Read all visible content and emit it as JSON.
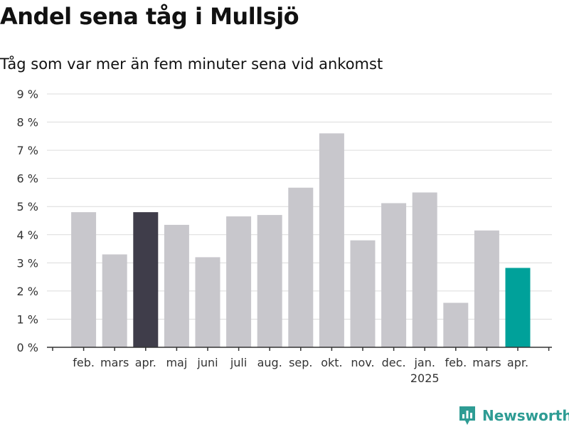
{
  "header": {
    "title": "Andel sena tåg i Mullsjö",
    "subtitle": "Tåg som var mer än fem minuter sena vid ankomst"
  },
  "brand": {
    "name": "Newsworthy",
    "color": "#2e9c94",
    "icon": "newsworthy-logo-icon"
  },
  "chart_data": {
    "type": "bar",
    "title": "Andel sena tåg i Mullsjö",
    "subtitle": "Tåg som var mer än fem minuter sena vid ankomst",
    "xlabel": "",
    "ylabel": "",
    "ylim": [
      0,
      9
    ],
    "y_ticks": [
      0,
      1,
      2,
      3,
      4,
      5,
      6,
      7,
      8,
      9
    ],
    "y_tick_labels": [
      "0 %",
      "1 %",
      "2 %",
      "3 %",
      "4 %",
      "5 %",
      "6 %",
      "7 %",
      "8 %",
      "9 %"
    ],
    "grid": true,
    "categories": [
      "feb.",
      "mars",
      "apr.",
      "maj",
      "juni",
      "juli",
      "aug.",
      "sep.",
      "okt.",
      "nov.",
      "dec.",
      "jan.",
      "feb.",
      "mars",
      "apr."
    ],
    "year_labels": [
      {
        "index": 11,
        "text": "2025"
      }
    ],
    "values": [
      4.8,
      3.3,
      4.8,
      4.35,
      3.2,
      4.65,
      4.7,
      5.67,
      7.6,
      3.8,
      5.12,
      5.5,
      1.58,
      4.15,
      2.82
    ],
    "bar_colors": [
      "#c8c7cc",
      "#c8c7cc",
      "#3f3d4a",
      "#c8c7cc",
      "#c8c7cc",
      "#c8c7cc",
      "#c8c7cc",
      "#c8c7cc",
      "#c8c7cc",
      "#c8c7cc",
      "#c8c7cc",
      "#c8c7cc",
      "#c8c7cc",
      "#c8c7cc",
      "#00a19a"
    ],
    "colors": {
      "default": "#c8c7cc",
      "previous_year": "#3f3d4a",
      "latest": "#00a19a",
      "grid": "#dcdcdc",
      "axis": "#333333"
    },
    "legend": "none"
  }
}
